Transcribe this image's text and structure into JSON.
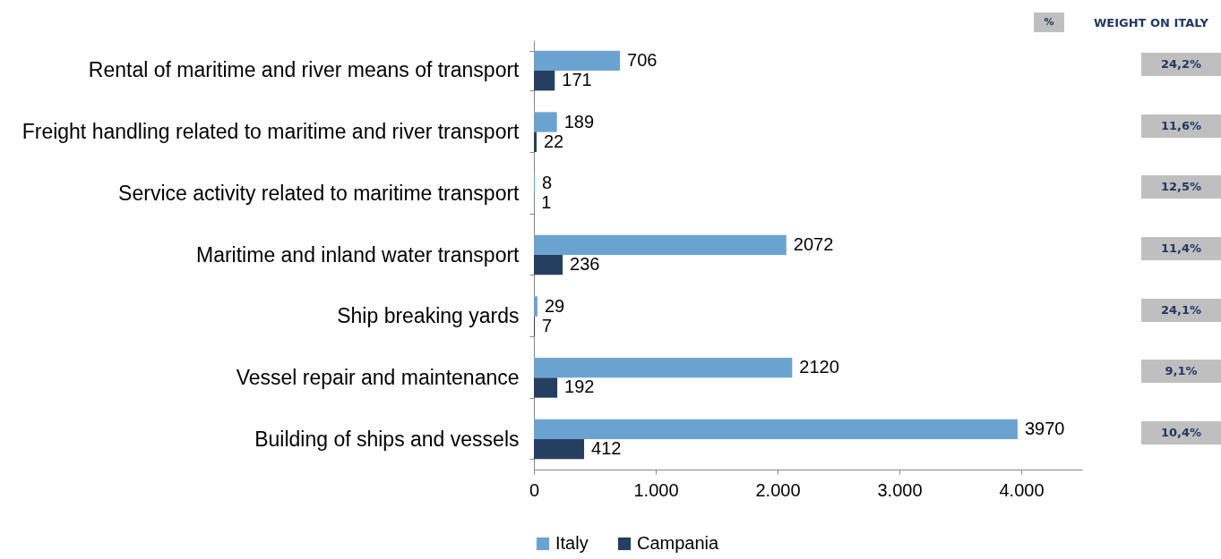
{
  "chart_data": {
    "type": "bar",
    "orientation": "horizontal",
    "categories": [
      "Rental of maritime and river means of transport",
      "Freight handling related to maritime and river transport",
      "Service activity related to maritime transport",
      "Maritime and inland water transport",
      "Ship breaking yards",
      "Vessel repair and maintenance",
      "Building of ships and vessels"
    ],
    "series": [
      {
        "name": "Italy",
        "color": "#6ba3d0",
        "values": [
          706,
          189,
          8,
          2072,
          29,
          2120,
          3970
        ]
      },
      {
        "name": "Campania",
        "color": "#243f60",
        "values": [
          171,
          22,
          1,
          236,
          7,
          192,
          412
        ]
      }
    ],
    "xlim": [
      0,
      4500
    ],
    "xticks": [
      0,
      {
        "value": 1000,
        "label": "1.000"
      },
      {
        "value": 2000,
        "label": "2.000"
      },
      {
        "value": 3000,
        "label": "3.000"
      },
      {
        "value": 4000,
        "label": "4.000"
      }
    ],
    "data_labels": true,
    "legend": "bottom",
    "grid": false,
    "annotations": [
      "%",
      "WEIGHT ON ITALY",
      "24,2%",
      "11,6%",
      "12,5%",
      "11,4%",
      "24,1%",
      "9,1%",
      "10,4%"
    ]
  }
}
